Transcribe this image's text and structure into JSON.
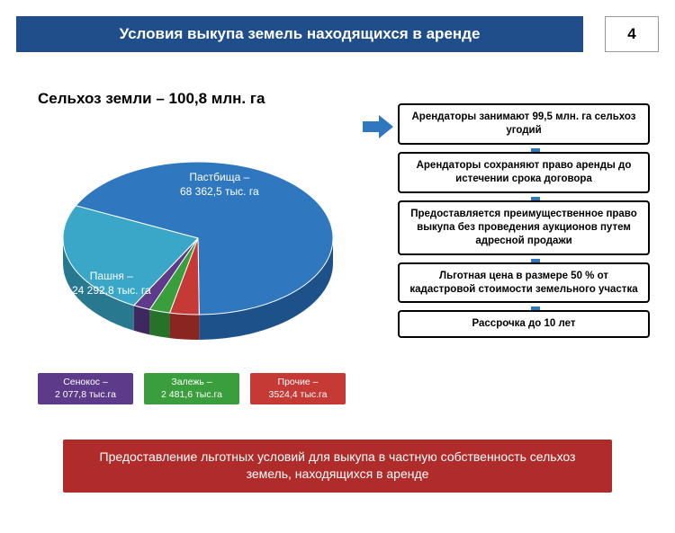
{
  "header": {
    "title": "Условия выкупа земель находящихся в аренде",
    "page_number": "4"
  },
  "subtitle": "Сельхоз земли – 100,8 млн. га",
  "pie_chart": {
    "type": "pie",
    "background_color": "#ffffff",
    "slices": [
      {
        "name": "Пастбища",
        "value": 68362.5,
        "label_line1": "Пастбища –",
        "label_line2": "68 362,5 тыс. га",
        "color": "#2f78c0",
        "side_color": "#1d518a"
      },
      {
        "name": "Прочие",
        "value": 3524.4,
        "label_line1": "Прочие –",
        "label_line2": "3524,4 тыс.га",
        "color": "#c63a36",
        "side_color": "#8b2522"
      },
      {
        "name": "Залежь",
        "value": 2481.6,
        "label_line1": "Залежь –",
        "label_line2": "2 481,6 тыс.га",
        "color": "#3b9e3d",
        "side_color": "#27722a"
      },
      {
        "name": "Сенокос",
        "value": 2077.8,
        "label_line1": "Сенокос –",
        "label_line2": "2 077,8 тыс.га",
        "color": "#5e3b8a",
        "side_color": "#3f2760"
      },
      {
        "name": "Пашня",
        "value": 24292.8,
        "label_line1": "Пашня –",
        "label_line2": "24 292,8 тыс. га",
        "color": "#3aa7c9",
        "side_color": "#28788f"
      }
    ],
    "label_color": "#ffffff",
    "label_fontsize": 12
  },
  "legend": {
    "items": [
      {
        "line1": "Сенокос –",
        "line2": "2 077,8 тыс.га",
        "bg": "#5e3b8a"
      },
      {
        "line1": "Залежь –",
        "line2": "2 481,6 тыс.га",
        "bg": "#3b9e3d"
      },
      {
        "line1": "Прочие –",
        "line2": "3524,4 тыс.га",
        "bg": "#c63a36"
      }
    ]
  },
  "flow_boxes": [
    "Арендаторы занимают 99,5 млн. га сельхоз угодий",
    "Арендаторы сохраняют право аренды до истечении срока договора",
    "Предоставляется преимущественное право выкупа без проведения аукционов путем адресной продажи",
    "Льготная цена в размере 50 % от кадастровой стоимости земельного участка",
    "Рассрочка до 10 лет"
  ],
  "arrow_color": "#2f78c0",
  "footer": {
    "text": "Предоставление льготных условий для выкупа в частную собственность сельхоз земель, находящихся в аренде",
    "bg": "#b02c2a"
  }
}
